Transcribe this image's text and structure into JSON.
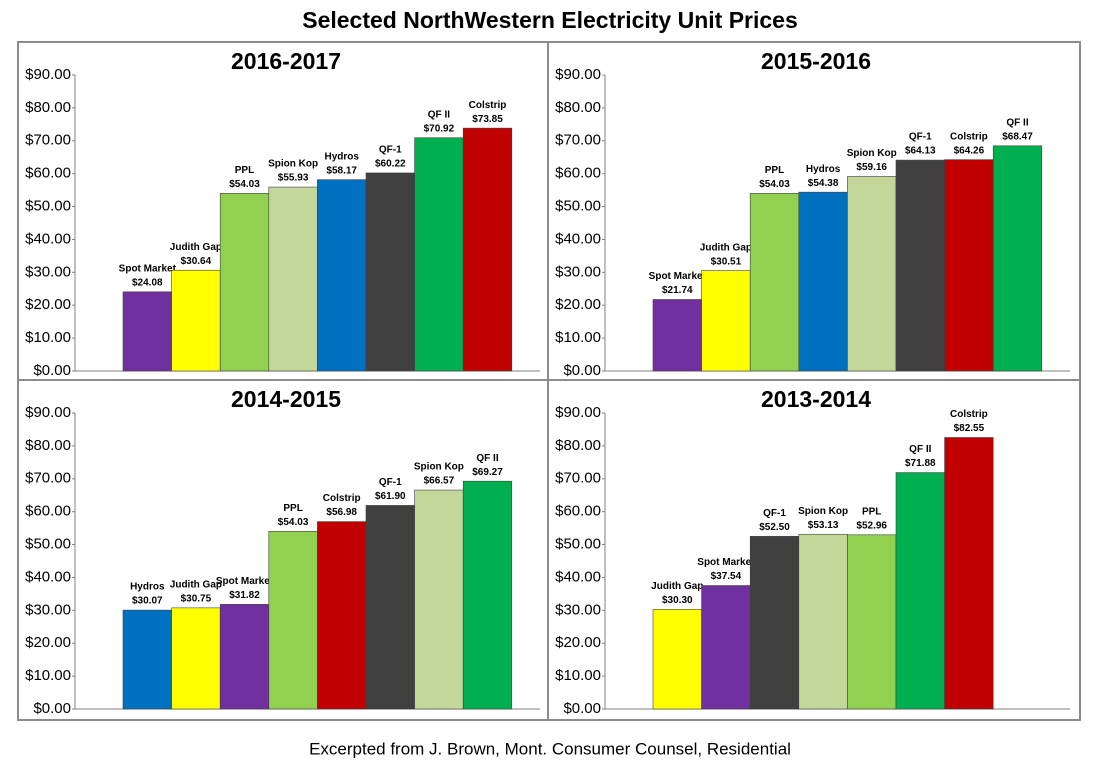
{
  "title": "Selected NorthWestern Electricity Unit Prices",
  "footnote": "Excerpted from J. Brown, Mont. Consumer Counsel, Residential",
  "chart_data": [
    {
      "type": "bar",
      "title": "2016-2017",
      "categories": [
        "Spot Market",
        "Judith Gap",
        "PPL",
        "Spion Kop",
        "Hydros",
        "QF-1",
        "QF II",
        "Colstrip"
      ],
      "values": [
        24.08,
        30.64,
        54.03,
        55.93,
        58.17,
        60.22,
        70.92,
        73.85
      ],
      "value_labels": [
        "$24.08",
        "$30.64",
        "$54.03",
        "$55.93",
        "$58.17",
        "$60.22",
        "$70.92",
        "$73.85"
      ],
      "colors": [
        "#7030a0",
        "#ffff00",
        "#92d050",
        "#c4d79b",
        "#0070c0",
        "#404040",
        "#00b050",
        "#c00000"
      ],
      "ylim": [
        0,
        90
      ],
      "yticks": [
        {
          "value": 0,
          "label": "$0.00"
        },
        {
          "value": 10,
          "label": "$10.00"
        },
        {
          "value": 20,
          "label": "$20.00"
        },
        {
          "value": 30,
          "label": "$30.00"
        },
        {
          "value": 40,
          "label": "$40.00"
        },
        {
          "value": 50,
          "label": "$50.00"
        },
        {
          "value": 60,
          "label": "$60.00"
        },
        {
          "value": 70,
          "label": "$70.00"
        },
        {
          "value": 80,
          "label": "$80.00"
        },
        {
          "value": 90,
          "label": "$90.00"
        }
      ],
      "grid": false
    },
    {
      "type": "bar",
      "title": "2015-2016",
      "categories": [
        "Spot Market",
        "Judith Gap",
        "PPL",
        "Hydros",
        "Spion Kop",
        "QF-1",
        "Colstrip",
        "QF II"
      ],
      "values": [
        21.74,
        30.51,
        54.03,
        54.38,
        59.16,
        64.13,
        64.26,
        68.47
      ],
      "value_labels": [
        "$21.74",
        "$30.51",
        "$54.03",
        "$54.38",
        "$59.16",
        "$64.13",
        "$64.26",
        "$68.47"
      ],
      "colors": [
        "#7030a0",
        "#ffff00",
        "#92d050",
        "#0070c0",
        "#c4d79b",
        "#404040",
        "#c00000",
        "#00b050"
      ],
      "ylim": [
        0,
        90
      ],
      "yticks": [
        {
          "value": 0,
          "label": "$0.00"
        },
        {
          "value": 10,
          "label": "$10.00"
        },
        {
          "value": 20,
          "label": "$20.00"
        },
        {
          "value": 30,
          "label": "$30.00"
        },
        {
          "value": 40,
          "label": "$40.00"
        },
        {
          "value": 50,
          "label": "$50.00"
        },
        {
          "value": 60,
          "label": "$60.00"
        },
        {
          "value": 70,
          "label": "$70.00"
        },
        {
          "value": 80,
          "label": "$80.00"
        },
        {
          "value": 90,
          "label": "$90.00"
        }
      ],
      "grid": false
    },
    {
      "type": "bar",
      "title": "2014-2015",
      "categories": [
        "Hydros",
        "Judith Gap",
        "Spot Market",
        "PPL",
        "Colstrip",
        "QF-1",
        "Spion Kop",
        "QF II"
      ],
      "values": [
        30.07,
        30.75,
        31.82,
        54.03,
        56.98,
        61.9,
        66.57,
        69.27
      ],
      "value_labels": [
        "$30.07",
        "$30.75",
        "$31.82",
        "$54.03",
        "$56.98",
        "$61.90",
        "$66.57",
        "$69.27"
      ],
      "colors": [
        "#0070c0",
        "#ffff00",
        "#7030a0",
        "#92d050",
        "#c00000",
        "#404040",
        "#c4d79b",
        "#00b050"
      ],
      "ylim": [
        0,
        90
      ],
      "yticks": [
        {
          "value": 0,
          "label": "$0.00"
        },
        {
          "value": 10,
          "label": "$10.00"
        },
        {
          "value": 20,
          "label": "$20.00"
        },
        {
          "value": 30,
          "label": "$30.00"
        },
        {
          "value": 40,
          "label": "$40.00"
        },
        {
          "value": 50,
          "label": "$50.00"
        },
        {
          "value": 60,
          "label": "$60.00"
        },
        {
          "value": 70,
          "label": "$70.00"
        },
        {
          "value": 80,
          "label": "$80.00"
        },
        {
          "value": 90,
          "label": "$90.00"
        }
      ],
      "grid": false
    },
    {
      "type": "bar",
      "title": "2013-2014",
      "categories": [
        "Judith Gap",
        "Spot Market",
        "QF-1",
        "Spion Kop",
        "PPL",
        "QF II",
        "Colstrip"
      ],
      "values": [
        30.3,
        37.54,
        52.5,
        53.13,
        52.96,
        71.88,
        82.55
      ],
      "value_labels": [
        "$30.30",
        "$37.54",
        "$52.50",
        "$53.13",
        "$52.96",
        "$71.88",
        "$82.55"
      ],
      "colors": [
        "#ffff00",
        "#7030a0",
        "#404040",
        "#c4d79b",
        "#92d050",
        "#00b050",
        "#c00000"
      ],
      "ylim": [
        0,
        90
      ],
      "yticks": [
        {
          "value": 0,
          "label": "$0.00"
        },
        {
          "value": 10,
          "label": "$10.00"
        },
        {
          "value": 20,
          "label": "$20.00"
        },
        {
          "value": 30,
          "label": "$30.00"
        },
        {
          "value": 40,
          "label": "$40.00"
        },
        {
          "value": 50,
          "label": "$50.00"
        },
        {
          "value": 60,
          "label": "$60.00"
        },
        {
          "value": 70,
          "label": "$70.00"
        },
        {
          "value": 80,
          "label": "$80.00"
        },
        {
          "value": 90,
          "label": "$90.00"
        }
      ],
      "grid": false
    }
  ]
}
